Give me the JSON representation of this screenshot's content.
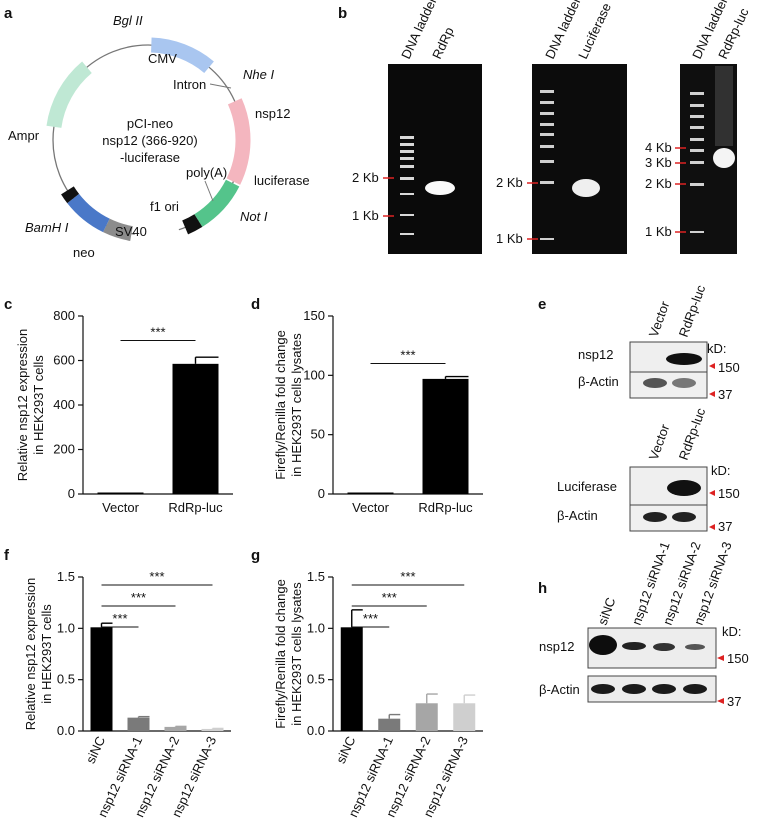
{
  "panels": {
    "a": {
      "letter": "a",
      "plasmid_center": [
        "pCI-neo",
        "nsp12 (366-920)",
        "-luciferase"
      ],
      "features": {
        "bgl": "Bgl II",
        "cmv": "CMV",
        "nhe": "Nhe I",
        "intron": "Intron",
        "nsp12": "nsp12",
        "luciferase": "luciferase",
        "not": "Not I",
        "polya": "poly(A)",
        "f1ori": "f1 ori",
        "sv40": "SV40",
        "neo": "neo",
        "bamh": "BamH I",
        "amp": "Ampr"
      },
      "colors": {
        "cmv": "#a9c6f0",
        "nsp12": "#f4b6bf",
        "luc": "#54c48b",
        "amp": "#bfe8d4",
        "neo": "#4a78c8",
        "sv40": "#8c8c8c"
      }
    },
    "b": {
      "letter": "b",
      "gels": [
        {
          "lanes": [
            "DNA ladder",
            "RdRp"
          ],
          "markers": [
            "2 Kb",
            "1 Kb"
          ]
        },
        {
          "lanes": [
            "DNA ladder",
            "Luciferase"
          ],
          "markers": [
            "2 Kb",
            "1 Kb"
          ]
        },
        {
          "lanes": [
            "DNA ladder",
            "RdRp-luc"
          ],
          "markers": [
            "4 Kb",
            "3 Kb",
            "2 Kb",
            "1 Kb"
          ]
        }
      ]
    },
    "c": {
      "letter": "c"
    },
    "d": {
      "letter": "d"
    },
    "e": {
      "letter": "e",
      "blot1": {
        "lanes": [
          "Vector",
          "RdRp-luc"
        ],
        "rows": [
          "nsp12",
          "β-Actin"
        ],
        "kd_label": "kD:",
        "kd_values": [
          "150",
          "37"
        ]
      },
      "blot2": {
        "lanes": [
          "Vector",
          "RdRp-luc"
        ],
        "rows": [
          "Luciferase",
          "β-Actin"
        ],
        "kd_label": "kD:",
        "kd_values": [
          "150",
          "37"
        ]
      }
    },
    "f": {
      "letter": "f"
    },
    "g": {
      "letter": "g"
    },
    "h": {
      "letter": "h",
      "lanes": [
        "siNC",
        "nsp12 siRNA-1",
        "nsp12 siRNA-2",
        "nsp12 siRNA-3"
      ],
      "rows": [
        "nsp12",
        "β-Actin"
      ],
      "kd_label": "kD:",
      "kd_values": [
        "150",
        "37"
      ]
    }
  },
  "chart_data": [
    {
      "id": "c",
      "type": "bar",
      "categories": [
        "Vector",
        "RdRp-luc"
      ],
      "values": [
        1,
        585
      ],
      "errors": [
        0,
        30
      ],
      "ylabel": "Relative nsp12 expression in HEK293T cells",
      "ylim": [
        0,
        800
      ],
      "yticks": [
        "0",
        "200",
        "400",
        "600",
        "800"
      ],
      "significance": [
        {
          "from": 0,
          "to": 1,
          "label": "***"
        }
      ],
      "bar_color": "#000000"
    },
    {
      "id": "d",
      "type": "bar",
      "categories": [
        "Vector",
        "RdRp-luc"
      ],
      "values": [
        1,
        97
      ],
      "errors": [
        0,
        2
      ],
      "ylabel": "Firefly/Renilla fold change in HEK293T cells  lysates",
      "ylim": [
        0,
        150
      ],
      "yticks": [
        "0",
        "50",
        "100",
        "150"
      ],
      "significance": [
        {
          "from": 0,
          "to": 1,
          "label": "***"
        }
      ],
      "bar_color": "#000000"
    },
    {
      "id": "f",
      "type": "bar",
      "categories": [
        "siNC",
        "nsp12 siRNA-1",
        "nsp12 siRNA-2",
        "nsp12 siRNA-3"
      ],
      "values": [
        1.01,
        0.13,
        0.04,
        0.02
      ],
      "errors": [
        0.04,
        0.01,
        0.005,
        0.005
      ],
      "colors": [
        "#000000",
        "#7a7a7a",
        "#a6a6a6",
        "#cfcfcf"
      ],
      "ylabel": "Relative nsp12 expression in HEK293T cells",
      "ylim": [
        0,
        1.5
      ],
      "yticks": [
        "0.0",
        "0.5",
        "1.0",
        "1.5"
      ],
      "significance": [
        {
          "from": 0,
          "to": 1,
          "label": "***"
        },
        {
          "from": 0,
          "to": 2,
          "label": "***"
        },
        {
          "from": 0,
          "to": 3,
          "label": "***"
        }
      ]
    },
    {
      "id": "g",
      "type": "bar",
      "categories": [
        "siNC",
        "nsp12 siRNA-1",
        "nsp12 siRNA-2",
        "nsp12 siRNA-3"
      ],
      "values": [
        1.01,
        0.12,
        0.27,
        0.27
      ],
      "errors": [
        0.17,
        0.04,
        0.09,
        0.08
      ],
      "colors": [
        "#000000",
        "#7a7a7a",
        "#a6a6a6",
        "#cfcfcf"
      ],
      "ylabel": "Firefly/Renilla fold change in HEK293T cells  lysates",
      "ylim": [
        0,
        1.5
      ],
      "yticks": [
        "0.0",
        "0.5",
        "1.0",
        "1.5"
      ],
      "significance": [
        {
          "from": 0,
          "to": 1,
          "label": "***"
        },
        {
          "from": 0,
          "to": 2,
          "label": "***"
        },
        {
          "from": 0,
          "to": 3,
          "label": "***"
        }
      ]
    }
  ]
}
